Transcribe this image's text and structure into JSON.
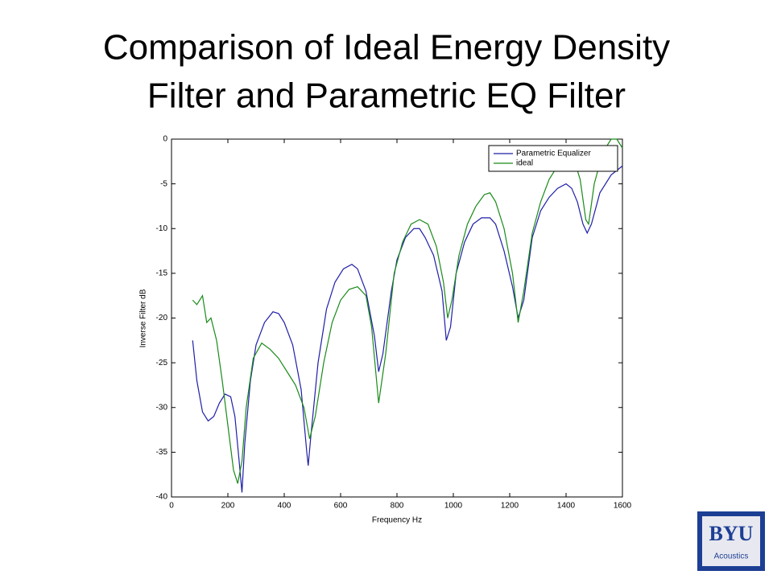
{
  "chart_data": {
    "type": "line",
    "title": [
      "Comparison of Ideal Energy Density",
      "Filter and Parametric EQ Filter"
    ],
    "x_label": "Frequency Hz",
    "y_label": "Inverse Filter dB",
    "xlim": [
      0,
      1600
    ],
    "ylim": [
      -40,
      0
    ],
    "xticks": [
      0,
      200,
      400,
      600,
      800,
      1000,
      1200,
      1400,
      1600
    ],
    "yticks": [
      0,
      -5,
      -10,
      -15,
      -20,
      -25,
      -30,
      -35,
      -40
    ],
    "grid": false,
    "legend": "upper right",
    "series": [
      {
        "name": "Parametric Equalizer",
        "color": "#1f1fa8",
        "x": [
          75,
          90,
          110,
          130,
          150,
          170,
          190,
          210,
          225,
          240,
          250,
          260,
          280,
          300,
          330,
          360,
          380,
          400,
          430,
          460,
          480,
          485,
          495,
          520,
          550,
          580,
          610,
          640,
          660,
          690,
          720,
          735,
          750,
          780,
          800,
          830,
          860,
          880,
          900,
          930,
          960,
          975,
          990,
          1010,
          1040,
          1070,
          1100,
          1130,
          1150,
          1180,
          1210,
          1230,
          1250,
          1280,
          1310,
          1340,
          1370,
          1400,
          1420,
          1440,
          1460,
          1475,
          1490,
          1520,
          1560,
          1600
        ],
        "values": [
          -22.5,
          -27,
          -30.5,
          -31.5,
          -31,
          -29.5,
          -28.5,
          -28.8,
          -31,
          -36,
          -39.5,
          -34,
          -27,
          -23,
          -20.5,
          -19.3,
          -19.5,
          -20.5,
          -23,
          -28,
          -35,
          -36.5,
          -33,
          -25,
          -19,
          -16,
          -14.5,
          -14,
          -14.5,
          -17,
          -22,
          -26,
          -24,
          -17,
          -13.5,
          -11,
          -10,
          -10,
          -11,
          -13,
          -17,
          -22.5,
          -21,
          -15,
          -11.5,
          -9.5,
          -8.8,
          -8.8,
          -9.5,
          -12.5,
          -16.5,
          -20,
          -18,
          -11,
          -8,
          -6.5,
          -5.5,
          -5,
          -5.5,
          -7,
          -9.5,
          -10.5,
          -9.5,
          -6,
          -4,
          -3
        ]
      },
      {
        "name": "ideal",
        "color": "#1a8a1a",
        "x": [
          75,
          90,
          110,
          125,
          140,
          160,
          180,
          200,
          220,
          235,
          250,
          265,
          290,
          320,
          350,
          380,
          410,
          440,
          470,
          490,
          510,
          540,
          570,
          600,
          630,
          660,
          690,
          710,
          735,
          760,
          790,
          820,
          850,
          880,
          910,
          940,
          965,
          980,
          995,
          1020,
          1050,
          1080,
          1110,
          1130,
          1150,
          1180,
          1210,
          1230,
          1250,
          1280,
          1310,
          1340,
          1370,
          1400,
          1430,
          1450,
          1470,
          1480,
          1500,
          1530,
          1560,
          1580,
          1600
        ],
        "values": [
          -18,
          -18.5,
          -17.5,
          -20.5,
          -20,
          -22.5,
          -27,
          -32,
          -37,
          -38.5,
          -36,
          -30,
          -24.5,
          -22.8,
          -23.5,
          -24.5,
          -26,
          -27.5,
          -30,
          -33.5,
          -31,
          -25,
          -20.5,
          -18,
          -16.8,
          -16.5,
          -17.5,
          -21,
          -29.5,
          -24,
          -15,
          -11.5,
          -9.5,
          -9,
          -9.5,
          -12,
          -16,
          -20,
          -18,
          -13,
          -9.5,
          -7.5,
          -6.2,
          -6,
          -7,
          -10,
          -15,
          -20.5,
          -17,
          -10.5,
          -7,
          -4.5,
          -3,
          -2,
          -2.5,
          -4.5,
          -9,
          -9.5,
          -5,
          -1.5,
          0,
          0,
          -1
        ]
      }
    ]
  },
  "logo": {
    "text": "BYU",
    "caption": "Acoustics"
  }
}
